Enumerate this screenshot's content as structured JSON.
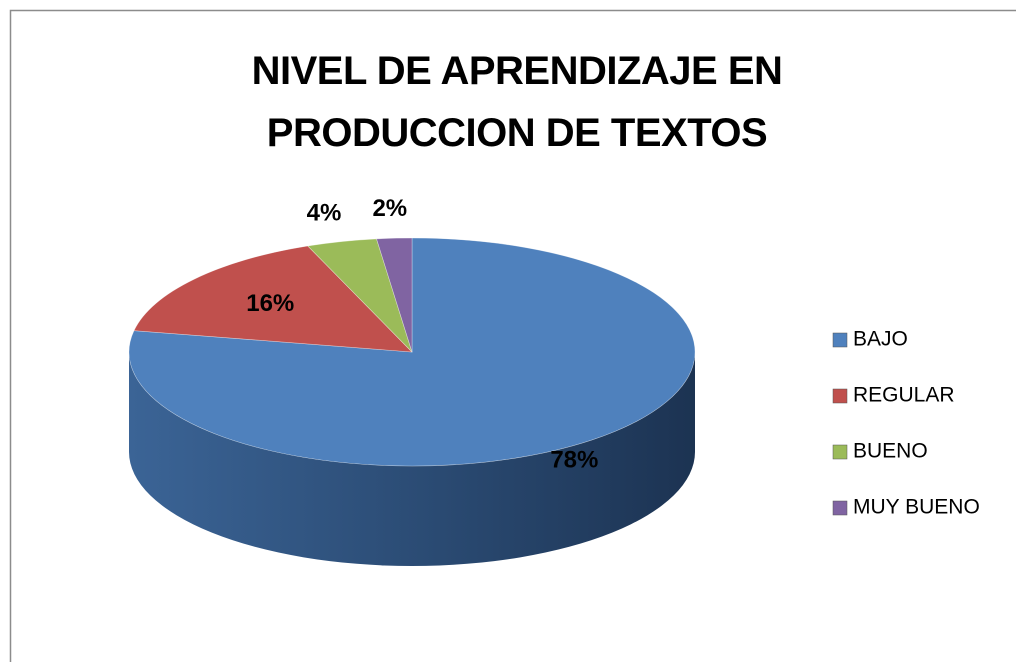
{
  "chart_data": {
    "type": "pie",
    "title": "NIVEL DE APRENDIZAJE EN PRODUCCION DE TEXTOS",
    "categories": [
      "BAJO",
      "REGULAR",
      "BUENO",
      "MUY BUENO"
    ],
    "values": [
      78,
      16,
      4,
      2
    ],
    "value_labels": [
      "78%",
      "16%",
      "4%",
      "2%"
    ],
    "colors": [
      "#4f81bd",
      "#c0504d",
      "#9bbb59",
      "#8064a2"
    ],
    "legend": "right"
  }
}
